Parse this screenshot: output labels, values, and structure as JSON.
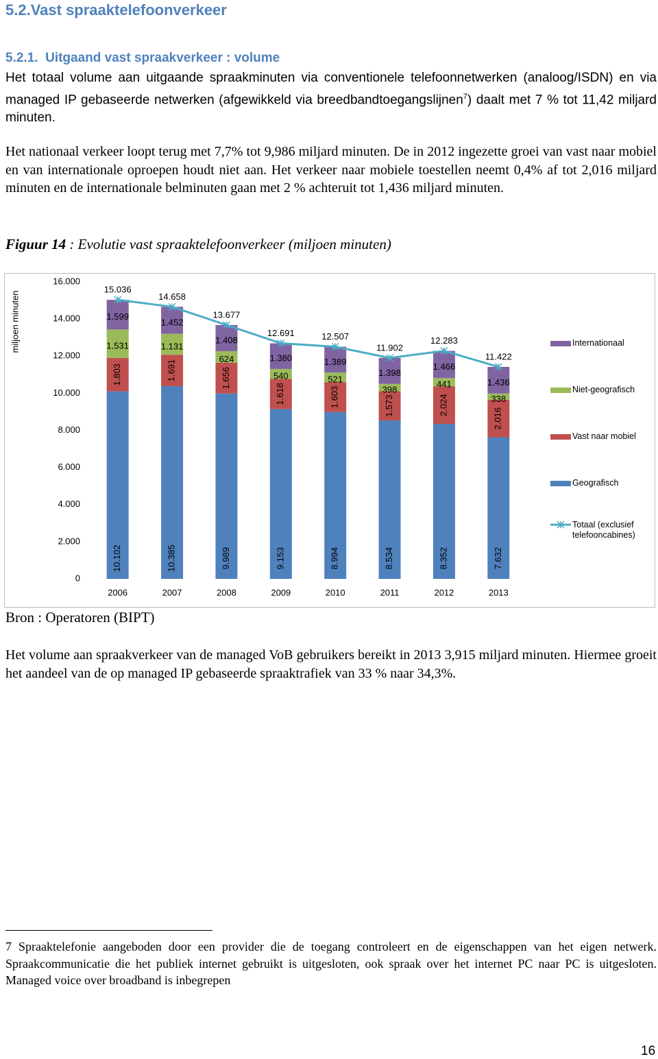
{
  "heading": "5.2.Vast spraaktelefoonverkeer",
  "subheading": "5.2.1.  Uitgaand vast spraakverkeer : volume",
  "paragraph_1": [
    "Het totaal volume aan uitgaande spraakminuten via conventionele telefoonnetwerken (analoog/ISDN) en via managed IP gebaseerde netwerken (afgewikkeld via breedbandtoegangslijnen",
    "7",
    ") daalt met 7 % tot 11,42 miljard minuten."
  ],
  "paragraph_2": "Het nationaal verkeer loopt terug met 7,7% tot 9,986 miljard minuten. De in 2012 ingezette groei van vast naar mobiel en van internationale oproepen houdt niet aan. Het verkeer naar mobiele toestellen neemt 0,4% af tot 2,016 miljard minuten en de internationale belminuten gaan met 2 % achteruit tot 1,436 miljard minuten.",
  "figure_caption": [
    "Figuur 14",
    " : Evolutie vast spraaktelefoonverkeer (miljoen minuten)"
  ],
  "chart_data": {
    "type": "bar",
    "stacked": true,
    "y_label": "miljoen minuten",
    "categories": [
      "2006",
      "2007",
      "2008",
      "2009",
      "2010",
      "2011",
      "2012",
      "2013"
    ],
    "ylim": [
      0,
      16000
    ],
    "yticks": [
      0,
      {
        "value": 2000,
        "label": "2.000"
      },
      {
        "value": 4000,
        "label": "4.000"
      },
      {
        "value": 6000,
        "label": "6.000"
      },
      {
        "value": 8000,
        "label": "8.000"
      },
      {
        "value": 10000,
        "label": "10.000"
      },
      {
        "value": 12000,
        "label": "12.000"
      },
      {
        "value": 14000,
        "label": "14.000"
      },
      {
        "value": 16000,
        "label": "16.000"
      }
    ],
    "series": [
      {
        "name": "Geografisch",
        "color": "#4f81bd",
        "values": [
          10102,
          10385,
          9989,
          9153,
          8994,
          8534,
          8352,
          7632
        ],
        "value_labels": [
          "10.102",
          "10.385",
          "9.989",
          "9.153",
          "8.994",
          "8.534",
          "8.352",
          "7.632"
        ]
      },
      {
        "name": "Vast naar mobiel",
        "color": "#c0504d",
        "values": [
          1803,
          1691,
          1656,
          1618,
          1603,
          1573,
          2024,
          2016
        ],
        "value_labels": [
          "1.803",
          "1.691",
          "1.656",
          "1.618",
          "1.603",
          "1.573",
          "2.024",
          "2.016"
        ]
      },
      {
        "name": "Niet-geografisch",
        "color": "#9bbb59",
        "values": [
          1531,
          1131,
          624,
          540,
          521,
          398,
          441,
          338
        ],
        "value_labels": [
          "1.531",
          "1.131",
          "624",
          "540",
          "521",
          "398",
          "441",
          "338"
        ]
      },
      {
        "name": "Internationaal",
        "color": "#8064a2",
        "values": [
          1599,
          1452,
          1408,
          1380,
          1389,
          1398,
          1466,
          1436
        ],
        "value_labels": [
          "1.599",
          "1.452",
          "1.408",
          "1.380",
          "1.389",
          "1.398",
          "1.466",
          "1.436"
        ]
      },
      {
        "name": "Totaal (exclusief telefooncabines)",
        "type": "line",
        "color": "#4bacc6",
        "values": [
          15036,
          14658,
          13677,
          12691,
          12507,
          11902,
          12283,
          11422
        ],
        "value_labels": [
          "15.036",
          "14.658",
          "13.677",
          "12.691",
          "12.507",
          "11.902",
          "12.283",
          "11.422"
        ]
      }
    ]
  },
  "source": "Bron : Operatoren (BIPT)",
  "paragraph_3": "Het volume aan spraakverkeer van de managed VoB gebruikers bereikt in 2013 3,915 miljard minuten. Hiermee groeit het aandeel van de op managed IP gebaseerde spraaktrafiek van 33 % naar 34,3%.",
  "footnote": [
    "7",
    "Spraaktelefonie aangeboden door een provider die de toegang controleert en de eigenschappen van het eigen netwerk. Spraakcommunicatie die het publiek internet gebruikt is uitgesloten, ook spraak over het internet PC naar PC is uitgesloten. Managed voice over broadband is inbegrepen"
  ],
  "page_number": "16"
}
